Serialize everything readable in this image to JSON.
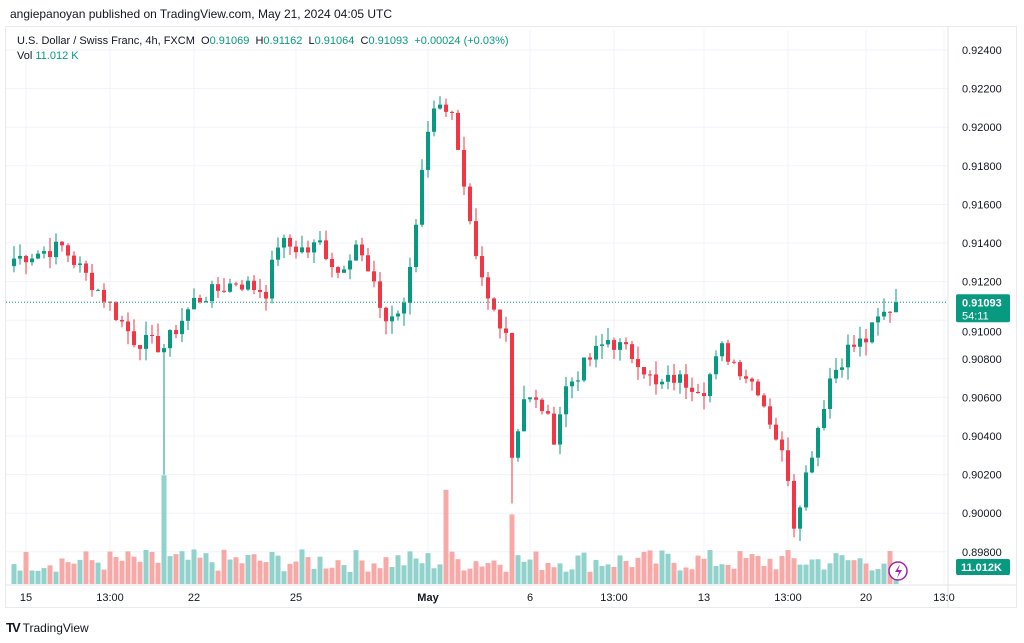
{
  "published": "angiepanoyan published on TradingView.com, May 21, 2024 04:05 UTC",
  "legend": {
    "symbol": "U.S. Dollar / Swiss Franc, 4h, FXCM",
    "o_label": "O",
    "o": "0.91069",
    "h_label": "H",
    "h": "0.91162",
    "l_label": "L",
    "l": "0.91064",
    "c_label": "C",
    "c": "0.91093",
    "change": "+0.00024 (+0.03%)",
    "vol_label": "Vol",
    "vol": "11.012 K"
  },
  "last_price": {
    "price": "0.91093",
    "countdown": "54:11"
  },
  "last_volume": "11.012K",
  "footer": {
    "brand": "TradingView"
  },
  "colors": {
    "up": "#089981",
    "down": "#f23645",
    "vol_up": "#92d2cc",
    "vol_down": "#f7a9a7"
  },
  "chart_data": {
    "type": "candlestick",
    "title": "U.S. Dollar / Swiss Franc, 4h, FXCM",
    "ylim": [
      0.8973,
      0.9248
    ],
    "y_ticks": [
      "0.92400",
      "0.92200",
      "0.92000",
      "0.91800",
      "0.91600",
      "0.91400",
      "0.91200",
      "0.91000",
      "0.90800",
      "0.90600",
      "0.90400",
      "0.90200",
      "0.90000",
      "0.89800"
    ],
    "x_ticks": [
      {
        "label": "15",
        "i": 2
      },
      {
        "label": "13:00",
        "i": 16
      },
      {
        "label": "22",
        "i": 30
      },
      {
        "label": "25",
        "i": 47
      },
      {
        "label": "May",
        "i": 69
      },
      {
        "label": "6",
        "i": 86
      },
      {
        "label": "13:00",
        "i": 100
      },
      {
        "label": "13",
        "i": 115
      },
      {
        "label": "13:00",
        "i": 129
      },
      {
        "label": "20",
        "i": 142
      },
      {
        "label": "13:0",
        "i": 155
      }
    ],
    "candle_count": 148,
    "close_keypoints": [
      [
        0,
        0.9132
      ],
      [
        8,
        0.9138
      ],
      [
        15,
        0.9112
      ],
      [
        20,
        0.909
      ],
      [
        25,
        0.9086
      ],
      [
        30,
        0.911
      ],
      [
        37,
        0.912
      ],
      [
        42,
        0.9115
      ],
      [
        44,
        0.914
      ],
      [
        49,
        0.9136
      ],
      [
        51,
        0.914
      ],
      [
        54,
        0.9125
      ],
      [
        57,
        0.914
      ],
      [
        62,
        0.91
      ],
      [
        65,
        0.9106
      ],
      [
        67,
        0.915
      ],
      [
        68,
        0.918
      ],
      [
        69,
        0.92
      ],
      [
        71,
        0.9215
      ],
      [
        73,
        0.9205
      ],
      [
        75,
        0.9165
      ],
      [
        77,
        0.913
      ],
      [
        79,
        0.911
      ],
      [
        82,
        0.9095
      ],
      [
        83,
        0.903
      ],
      [
        85,
        0.906
      ],
      [
        88,
        0.9055
      ],
      [
        90,
        0.904
      ],
      [
        92,
        0.9065
      ],
      [
        96,
        0.908
      ],
      [
        99,
        0.909
      ],
      [
        104,
        0.908
      ],
      [
        107,
        0.9065
      ],
      [
        110,
        0.907
      ],
      [
        115,
        0.9065
      ],
      [
        118,
        0.9085
      ],
      [
        121,
        0.9075
      ],
      [
        124,
        0.9065
      ],
      [
        127,
        0.904
      ],
      [
        129,
        0.902
      ],
      [
        130,
        0.8995
      ],
      [
        132,
        0.902
      ],
      [
        134,
        0.9045
      ],
      [
        136,
        0.907
      ],
      [
        139,
        0.9085
      ],
      [
        142,
        0.909
      ],
      [
        144,
        0.91
      ],
      [
        147,
        0.91093
      ]
    ],
    "volume_unit": "K",
    "last_volume": 11.012
  }
}
